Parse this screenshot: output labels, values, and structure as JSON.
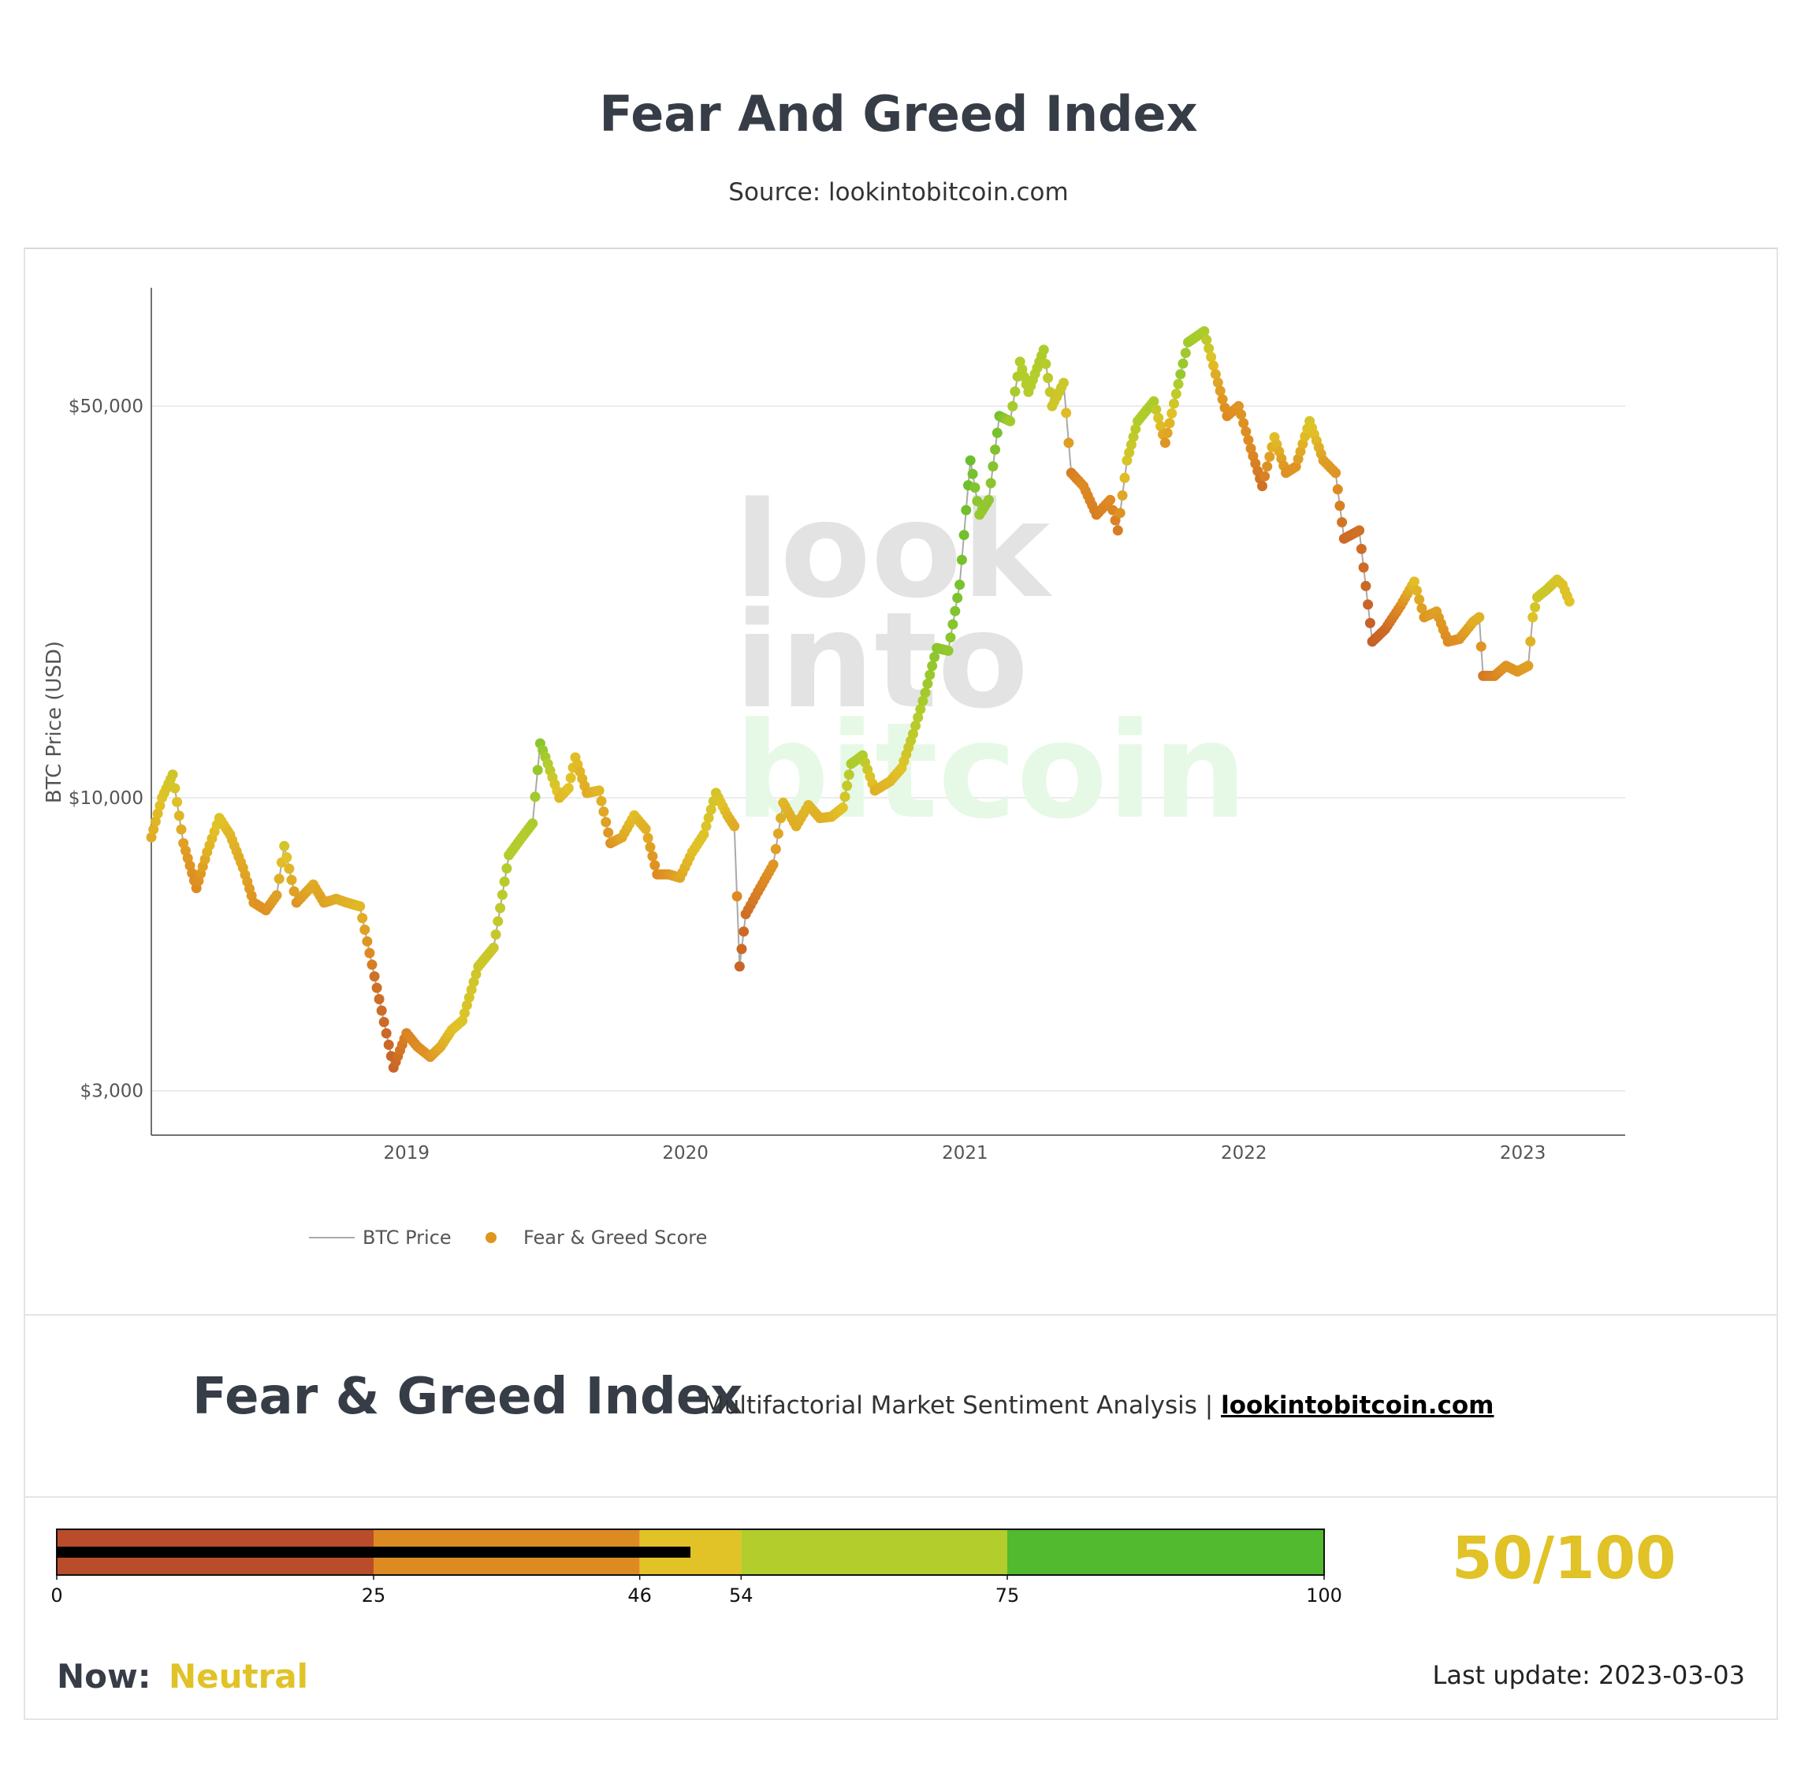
{
  "header": {
    "title": "Fear And Greed Index",
    "subtitle": "Source: lookintobitcoin.com"
  },
  "watermark": {
    "line1": "look",
    "line2": "into",
    "line3": "bitcoin"
  },
  "chart_data": {
    "type": "scatter",
    "ylabel": "BTC Price (USD)",
    "yscale": "log",
    "ylim": [
      2500,
      75000
    ],
    "xlim": [
      "2018-02-01",
      "2023-05-15"
    ],
    "grid": true,
    "legend_position": "bottom-left",
    "y_ticks": [
      {
        "value": 50000,
        "label": "$50,000"
      },
      {
        "value": 10000,
        "label": "$10,000"
      },
      {
        "value": 3000,
        "label": "$3,000"
      }
    ],
    "x_ticks": [
      {
        "value": "2019-01-01",
        "label": "2019"
      },
      {
        "value": "2020-01-01",
        "label": "2020"
      },
      {
        "value": "2021-01-01",
        "label": "2021"
      },
      {
        "value": "2022-01-01",
        "label": "2022"
      },
      {
        "value": "2023-01-01",
        "label": "2023"
      }
    ],
    "series": [
      {
        "name": "BTC Price",
        "kind": "line",
        "color": "#a9a9a9"
      },
      {
        "name": "Fear & Greed Score",
        "kind": "markers",
        "color": "#e0951f"
      }
    ],
    "points": [
      {
        "x": "2018-02-01",
        "price": 8500,
        "score": 40
      },
      {
        "x": "2018-02-15",
        "price": 10000,
        "score": 50
      },
      {
        "x": "2018-03-01",
        "price": 11000,
        "score": 58
      },
      {
        "x": "2018-03-15",
        "price": 8300,
        "score": 35
      },
      {
        "x": "2018-04-01",
        "price": 6900,
        "score": 25
      },
      {
        "x": "2018-04-15",
        "price": 8000,
        "score": 42
      },
      {
        "x": "2018-05-01",
        "price": 9200,
        "score": 52
      },
      {
        "x": "2018-05-15",
        "price": 8600,
        "score": 45
      },
      {
        "x": "2018-06-01",
        "price": 7500,
        "score": 38
      },
      {
        "x": "2018-06-15",
        "price": 6500,
        "score": 30
      },
      {
        "x": "2018-07-01",
        "price": 6300,
        "score": 28
      },
      {
        "x": "2018-07-15",
        "price": 6700,
        "score": 35
      },
      {
        "x": "2018-07-25",
        "price": 8200,
        "score": 55
      },
      {
        "x": "2018-08-10",
        "price": 6500,
        "score": 30
      },
      {
        "x": "2018-09-01",
        "price": 7000,
        "score": 40
      },
      {
        "x": "2018-09-15",
        "price": 6500,
        "score": 35
      },
      {
        "x": "2018-10-01",
        "price": 6600,
        "score": 40
      },
      {
        "x": "2018-10-15",
        "price": 6500,
        "score": 42
      },
      {
        "x": "2018-11-01",
        "price": 6400,
        "score": 45
      },
      {
        "x": "2018-11-20",
        "price": 4800,
        "score": 15
      },
      {
        "x": "2018-12-15",
        "price": 3300,
        "score": 10
      },
      {
        "x": "2019-01-01",
        "price": 3800,
        "score": 22
      },
      {
        "x": "2019-01-15",
        "price": 3600,
        "score": 25
      },
      {
        "x": "2019-02-01",
        "price": 3450,
        "score": 30
      },
      {
        "x": "2019-02-15",
        "price": 3600,
        "score": 40
      },
      {
        "x": "2019-03-01",
        "price": 3850,
        "score": 48
      },
      {
        "x": "2019-03-15",
        "price": 4000,
        "score": 52
      },
      {
        "x": "2019-04-05",
        "price": 5000,
        "score": 58
      },
      {
        "x": "2019-04-25",
        "price": 5400,
        "score": 60
      },
      {
        "x": "2019-05-15",
        "price": 7900,
        "score": 70
      },
      {
        "x": "2019-06-01",
        "price": 8500,
        "score": 68
      },
      {
        "x": "2019-06-15",
        "price": 9000,
        "score": 72
      },
      {
        "x": "2019-06-25",
        "price": 12500,
        "score": 82
      },
      {
        "x": "2019-07-05",
        "price": 11500,
        "score": 70
      },
      {
        "x": "2019-07-20",
        "price": 10000,
        "score": 45
      },
      {
        "x": "2019-08-01",
        "price": 10400,
        "score": 50
      },
      {
        "x": "2019-08-10",
        "price": 11800,
        "score": 48
      },
      {
        "x": "2019-08-25",
        "price": 10200,
        "score": 40
      },
      {
        "x": "2019-09-10",
        "price": 10300,
        "score": 45
      },
      {
        "x": "2019-09-25",
        "price": 8300,
        "score": 28
      },
      {
        "x": "2019-10-10",
        "price": 8500,
        "score": 38
      },
      {
        "x": "2019-10-26",
        "price": 9300,
        "score": 48
      },
      {
        "x": "2019-11-10",
        "price": 8800,
        "score": 42
      },
      {
        "x": "2019-11-25",
        "price": 7300,
        "score": 25
      },
      {
        "x": "2019-12-10",
        "price": 7300,
        "score": 30
      },
      {
        "x": "2019-12-25",
        "price": 7200,
        "score": 38
      },
      {
        "x": "2020-01-10",
        "price": 8000,
        "score": 48
      },
      {
        "x": "2020-01-25",
        "price": 8600,
        "score": 52
      },
      {
        "x": "2020-02-10",
        "price": 10200,
        "score": 56
      },
      {
        "x": "2020-02-25",
        "price": 9300,
        "score": 45
      },
      {
        "x": "2020-03-05",
        "price": 8900,
        "score": 40
      },
      {
        "x": "2020-03-12",
        "price": 5000,
        "score": 10
      },
      {
        "x": "2020-03-20",
        "price": 6200,
        "score": 14
      },
      {
        "x": "2020-04-05",
        "price": 6800,
        "score": 20
      },
      {
        "x": "2020-04-25",
        "price": 7600,
        "score": 30
      },
      {
        "x": "2020-05-08",
        "price": 9800,
        "score": 45
      },
      {
        "x": "2020-05-25",
        "price": 8900,
        "score": 40
      },
      {
        "x": "2020-06-10",
        "price": 9700,
        "score": 45
      },
      {
        "x": "2020-06-25",
        "price": 9200,
        "score": 42
      },
      {
        "x": "2020-07-10",
        "price": 9250,
        "score": 44
      },
      {
        "x": "2020-07-25",
        "price": 9600,
        "score": 50
      },
      {
        "x": "2020-08-05",
        "price": 11500,
        "score": 72
      },
      {
        "x": "2020-08-20",
        "price": 11900,
        "score": 70
      },
      {
        "x": "2020-09-05",
        "price": 10300,
        "score": 42
      },
      {
        "x": "2020-09-25",
        "price": 10700,
        "score": 45
      },
      {
        "x": "2020-10-10",
        "price": 11300,
        "score": 50
      },
      {
        "x": "2020-10-25",
        "price": 13000,
        "score": 65
      },
      {
        "x": "2020-11-10",
        "price": 15400,
        "score": 75
      },
      {
        "x": "2020-11-25",
        "price": 18500,
        "score": 82
      },
      {
        "x": "2020-12-10",
        "price": 18300,
        "score": 80
      },
      {
        "x": "2020-12-25",
        "price": 24000,
        "score": 88
      },
      {
        "x": "2021-01-08",
        "price": 40000,
        "score": 92
      },
      {
        "x": "2021-01-20",
        "price": 32000,
        "score": 78
      },
      {
        "x": "2021-02-01",
        "price": 34000,
        "score": 80
      },
      {
        "x": "2021-02-15",
        "price": 48000,
        "score": 90
      },
      {
        "x": "2021-03-01",
        "price": 47000,
        "score": 75
      },
      {
        "x": "2021-03-14",
        "price": 60000,
        "score": 70
      },
      {
        "x": "2021-03-25",
        "price": 53000,
        "score": 68
      },
      {
        "x": "2021-04-14",
        "price": 63000,
        "score": 72
      },
      {
        "x": "2021-04-25",
        "price": 50000,
        "score": 58
      },
      {
        "x": "2021-05-10",
        "price": 55000,
        "score": 60
      },
      {
        "x": "2021-05-20",
        "price": 38000,
        "score": 20
      },
      {
        "x": "2021-06-05",
        "price": 36000,
        "score": 25
      },
      {
        "x": "2021-06-22",
        "price": 32000,
        "score": 20
      },
      {
        "x": "2021-07-10",
        "price": 34000,
        "score": 25
      },
      {
        "x": "2021-07-20",
        "price": 30000,
        "score": 20
      },
      {
        "x": "2021-08-01",
        "price": 40000,
        "score": 55
      },
      {
        "x": "2021-08-15",
        "price": 47000,
        "score": 70
      },
      {
        "x": "2021-09-05",
        "price": 51000,
        "score": 72
      },
      {
        "x": "2021-09-20",
        "price": 43000,
        "score": 30
      },
      {
        "x": "2021-10-10",
        "price": 57000,
        "score": 78
      },
      {
        "x": "2021-10-20",
        "price": 65000,
        "score": 75
      },
      {
        "x": "2021-11-10",
        "price": 68000,
        "score": 72
      },
      {
        "x": "2021-11-25",
        "price": 57000,
        "score": 40
      },
      {
        "x": "2021-12-10",
        "price": 48000,
        "score": 25
      },
      {
        "x": "2021-12-25",
        "price": 50000,
        "score": 30
      },
      {
        "x": "2022-01-10",
        "price": 42000,
        "score": 25
      },
      {
        "x": "2022-01-25",
        "price": 36000,
        "score": 15
      },
      {
        "x": "2022-02-10",
        "price": 44000,
        "score": 48
      },
      {
        "x": "2022-02-25",
        "price": 38000,
        "score": 28
      },
      {
        "x": "2022-03-10",
        "price": 39000,
        "score": 30
      },
      {
        "x": "2022-03-28",
        "price": 47000,
        "score": 55
      },
      {
        "x": "2022-04-15",
        "price": 40000,
        "score": 35
      },
      {
        "x": "2022-05-01",
        "price": 38000,
        "score": 30
      },
      {
        "x": "2022-05-12",
        "price": 29000,
        "score": 12
      },
      {
        "x": "2022-06-01",
        "price": 30000,
        "score": 15
      },
      {
        "x": "2022-06-18",
        "price": 19000,
        "score": 8
      },
      {
        "x": "2022-07-05",
        "price": 20000,
        "score": 12
      },
      {
        "x": "2022-07-25",
        "price": 22000,
        "score": 25
      },
      {
        "x": "2022-08-12",
        "price": 24300,
        "score": 48
      },
      {
        "x": "2022-08-25",
        "price": 21000,
        "score": 30
      },
      {
        "x": "2022-09-10",
        "price": 21500,
        "score": 35
      },
      {
        "x": "2022-09-25",
        "price": 19000,
        "score": 25
      },
      {
        "x": "2022-10-10",
        "price": 19200,
        "score": 28
      },
      {
        "x": "2022-10-28",
        "price": 20600,
        "score": 40
      },
      {
        "x": "2022-11-05",
        "price": 21000,
        "score": 42
      },
      {
        "x": "2022-11-10",
        "price": 16500,
        "score": 18
      },
      {
        "x": "2022-11-25",
        "price": 16500,
        "score": 22
      },
      {
        "x": "2022-12-10",
        "price": 17200,
        "score": 30
      },
      {
        "x": "2022-12-25",
        "price": 16800,
        "score": 30
      },
      {
        "x": "2023-01-08",
        "price": 17200,
        "score": 35
      },
      {
        "x": "2023-01-14",
        "price": 21000,
        "score": 52
      },
      {
        "x": "2023-01-20",
        "price": 22800,
        "score": 58
      },
      {
        "x": "2023-02-01",
        "price": 23500,
        "score": 60
      },
      {
        "x": "2023-02-15",
        "price": 24500,
        "score": 55
      },
      {
        "x": "2023-02-22",
        "price": 24000,
        "score": 52
      },
      {
        "x": "2023-03-03",
        "price": 22400,
        "score": 50
      }
    ]
  },
  "index_header": {
    "title": "Fear & Greed Index",
    "tagline": "Multifactorial Market Sentiment Analysis | ",
    "link": "lookintobitcoin.com"
  },
  "gauge": {
    "value": 50,
    "max": 100,
    "value_label": "50/100",
    "bands": [
      {
        "from": 0,
        "to": 25,
        "color": "#b94c2b"
      },
      {
        "from": 25,
        "to": 46,
        "color": "#de8a22"
      },
      {
        "from": 46,
        "to": 54,
        "color": "#e1c227"
      },
      {
        "from": 54,
        "to": 75,
        "color": "#b2cd2c"
      },
      {
        "from": 75,
        "to": 100,
        "color": "#51ba2e"
      }
    ],
    "ticks": [
      "0",
      "25",
      "46",
      "54",
      "75",
      "100"
    ],
    "value_color": "#e1c227",
    "indicator_color": "#000000"
  },
  "footer": {
    "now_label": "Now:",
    "now_value": "Neutral",
    "last_update": "Last update: 2023-03-03"
  }
}
